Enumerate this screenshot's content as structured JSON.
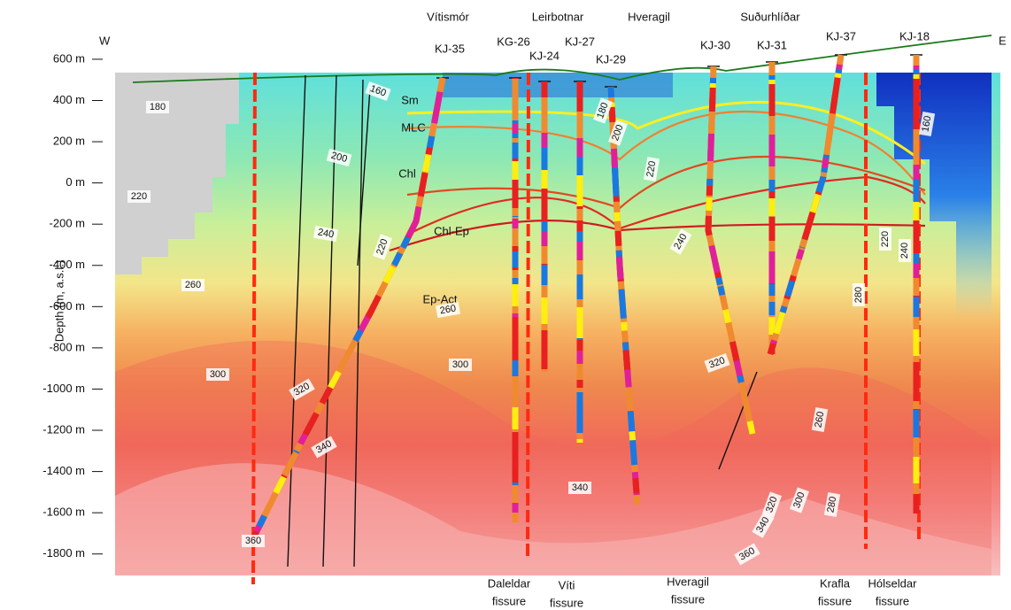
{
  "chart_data": {
    "type": "cross-section",
    "ylabel": "Depth (m, a.s.l.)",
    "ylim": [
      -1900,
      750
    ],
    "yticks": [
      {
        "value": 600,
        "label": "600 m"
      },
      {
        "value": 400,
        "label": "400 m"
      },
      {
        "value": 200,
        "label": "200 m"
      },
      {
        "value": 0,
        "label": "0 m"
      },
      {
        "value": -200,
        "label": "-200 m"
      },
      {
        "value": -400,
        "label": "-400 m"
      },
      {
        "value": -600,
        "label": "-600 m"
      },
      {
        "value": -800,
        "label": "-800 m"
      },
      {
        "value": -1000,
        "label": "-1000 m"
      },
      {
        "value": -1200,
        "label": "-1200 m"
      },
      {
        "value": -1400,
        "label": "-1400 m"
      },
      {
        "value": -1600,
        "label": "-1600 m"
      },
      {
        "value": -1800,
        "label": "-1800 m"
      }
    ],
    "west": "W",
    "east": "E",
    "areas": [
      "Vítismór",
      "Leirbotnar",
      "Hveragil",
      "Suðurhlíðar"
    ],
    "wells": [
      "KJ-35",
      "KG-26",
      "KJ-24",
      "KJ-27",
      "KJ-29",
      "KJ-30",
      "KJ-31",
      "KJ-37",
      "KJ-18"
    ],
    "zones": [
      "Sm",
      "MLC",
      "Chl",
      "Chl-Ep",
      "Ep-Act"
    ],
    "fissures": [
      [
        "Daleldar",
        "fissure"
      ],
      [
        "Víti",
        "fissure"
      ],
      [
        "Hveragil",
        "fissure"
      ],
      [
        "Krafla",
        "fissure"
      ],
      [
        "Hólseldar",
        "fissure"
      ]
    ],
    "isotherms": [
      160,
      180,
      200,
      220,
      240,
      260,
      280,
      300,
      320,
      340,
      360
    ]
  }
}
